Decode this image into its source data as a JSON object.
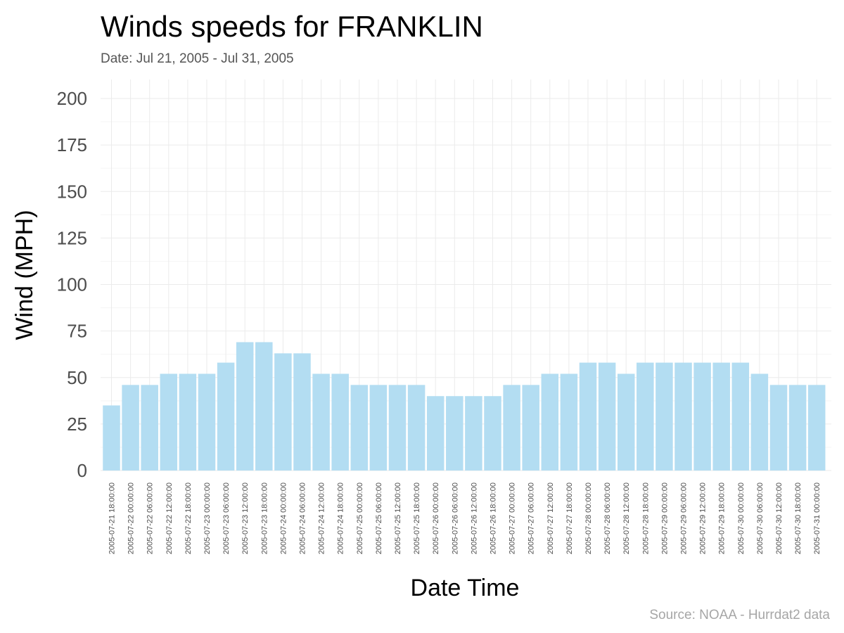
{
  "chart_data": {
    "type": "bar",
    "title": "Winds speeds for FRANKLIN",
    "subtitle": "Date:  Jul 21, 2005 - Jul 31, 2005",
    "xlabel": "Date Time",
    "ylabel": "Wind (MPH)",
    "caption": "Source: NOAA - Hurrdat2 data",
    "ylim": [
      0,
      200
    ],
    "yticks": [
      0,
      25,
      50,
      75,
      100,
      125,
      150,
      175,
      200
    ],
    "grid": true,
    "bar_color": "#b3ddf2",
    "categories": [
      "2005-07-21 18:00:00",
      "2005-07-22 00:00:00",
      "2005-07-22 06:00:00",
      "2005-07-22 12:00:00",
      "2005-07-22 18:00:00",
      "2005-07-23 00:00:00",
      "2005-07-23 06:00:00",
      "2005-07-23 12:00:00",
      "2005-07-23 18:00:00",
      "2005-07-24 00:00:00",
      "2005-07-24 06:00:00",
      "2005-07-24 12:00:00",
      "2005-07-24 18:00:00",
      "2005-07-25 00:00:00",
      "2005-07-25 06:00:00",
      "2005-07-25 12:00:00",
      "2005-07-25 18:00:00",
      "2005-07-26 00:00:00",
      "2005-07-26 06:00:00",
      "2005-07-26 12:00:00",
      "2005-07-26 18:00:00",
      "2005-07-27 00:00:00",
      "2005-07-27 06:00:00",
      "2005-07-27 12:00:00",
      "2005-07-27 18:00:00",
      "2005-07-28 00:00:00",
      "2005-07-28 06:00:00",
      "2005-07-28 12:00:00",
      "2005-07-28 18:00:00",
      "2005-07-29 00:00:00",
      "2005-07-29 06:00:00",
      "2005-07-29 12:00:00",
      "2005-07-29 18:00:00",
      "2005-07-30 00:00:00",
      "2005-07-30 06:00:00",
      "2005-07-30 12:00:00",
      "2005-07-30 18:00:00",
      "2005-07-31 00:00:00"
    ],
    "values": [
      35,
      46,
      46,
      52,
      52,
      52,
      58,
      69,
      69,
      63,
      63,
      52,
      52,
      46,
      46,
      46,
      46,
      40,
      40,
      40,
      40,
      46,
      46,
      52,
      52,
      58,
      58,
      52,
      58,
      58,
      58,
      58,
      58,
      58,
      52,
      46,
      46,
      46
    ]
  }
}
